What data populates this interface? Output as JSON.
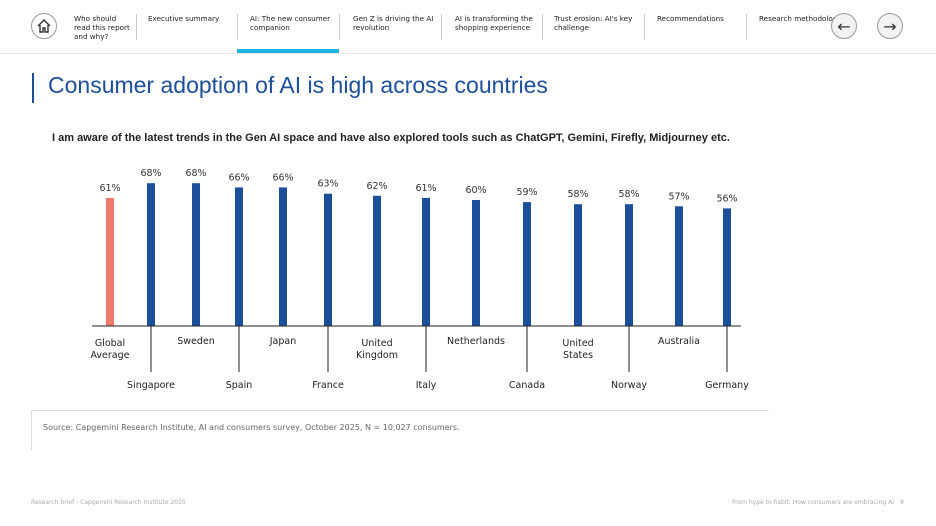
{
  "nav": {
    "items": [
      "Who should read this report and why?",
      "Executive summary",
      "AI: The new consumer companion",
      "Gen Z is driving the AI revolution",
      "AI is transforming the shopping experience",
      "Trust erosion: AI's key challenge",
      "Recommendations",
      "Research methodology"
    ],
    "active_index": 2,
    "icons": [
      "home-icon",
      "arrow-left-icon",
      "arrow-right-icon"
    ]
  },
  "page": {
    "title": "Consumer adoption of AI is high across countries",
    "source": "Source: Capgemini Research Institute, AI and consumers survey, October 2025, N = 10,027 consumers.",
    "footer_left": "Research brief - Capgemini Research Institute 2025",
    "footer_right": "From hype to habit: How consumers are embracing AI",
    "page_number": "9"
  },
  "colors": {
    "accent": "#1b4f9c",
    "highlight": "#f07b6c",
    "nav_active": "#1fb3e6"
  },
  "chart_data": {
    "type": "bar",
    "title": "I am aware of the latest trends in the Gen AI space and have also explored tools such as ChatGPT, Gemini, Firefly, Midjourney etc.",
    "categories": [
      "Global Average",
      "Singapore",
      "Sweden",
      "Spain",
      "Japan",
      "France",
      "United Kingdom",
      "Italy",
      "Netherlands",
      "Canada",
      "United States",
      "Norway",
      "Australia",
      "Germany"
    ],
    "values": [
      61,
      68,
      68,
      66,
      66,
      63,
      62,
      61,
      60,
      59,
      58,
      58,
      57,
      56
    ],
    "value_labels": [
      "61%",
      "68%",
      "68%",
      "66%",
      "66%",
      "63%",
      "62%",
      "61%",
      "60%",
      "59%",
      "58%",
      "58%",
      "57%",
      "56%"
    ],
    "highlight_category": "Global Average",
    "unit": "%",
    "grid": false,
    "legend": "none"
  }
}
